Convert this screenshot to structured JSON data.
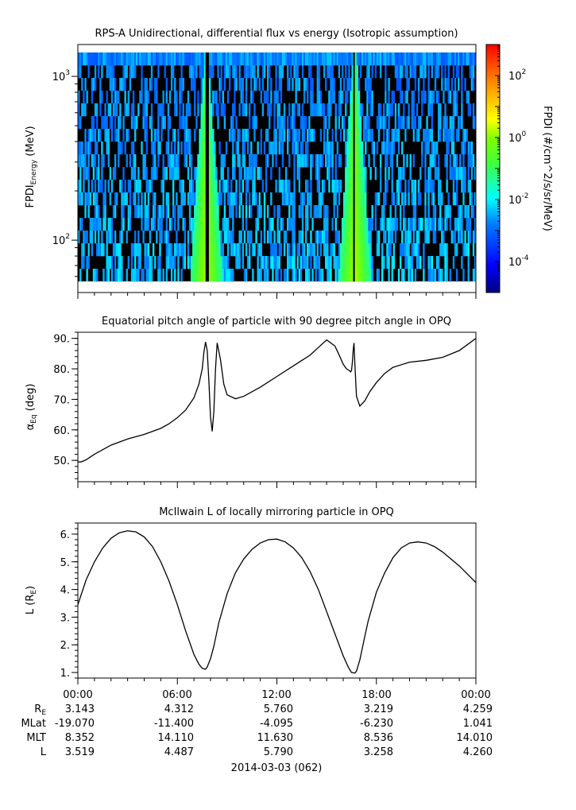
{
  "panels": [
    {
      "title": "RPS-A Unidirectional, differential flux vs energy (Isotropic assumption)",
      "ylabel_main": "FPDI",
      "ylabel_sub": "Energy",
      "ylabel_unit": " (MeV)",
      "ytick_labels": [
        {
          "base": "10",
          "exp": "2"
        },
        {
          "base": "10",
          "exp": "3"
        }
      ],
      "colorbar": {
        "label": "FPDI (#/cm^2/s/sr/MeV)",
        "tick_labels": [
          {
            "base": "10",
            "exp": "2"
          },
          {
            "base": "10",
            "exp": "0"
          },
          {
            "base": "10",
            "exp": "-2"
          },
          {
            "base": "10",
            "exp": "-4"
          }
        ]
      }
    },
    {
      "title": "Equatorial pitch angle of particle with 90 degree pitch angle in OPQ",
      "ylabel_main": "α",
      "ylabel_sub": "Eq",
      "ylabel_unit": " (deg)",
      "ytick_labels": [
        "50.",
        "60.",
        "70.",
        "80.",
        "90."
      ]
    },
    {
      "title": "McIlwain L of locally mirroring particle in OPQ",
      "ylabel_main": "L (R",
      "ylabel_sub": "E",
      "ylabel_unit": ")",
      "ytick_labels": [
        "1.",
        "2.",
        "3.",
        "4.",
        "5.",
        "6."
      ]
    }
  ],
  "xaxis": {
    "tick_labels": [
      "00:00",
      "06:00",
      "12:00",
      "18:00",
      "00:00"
    ],
    "date_label": "2014-03-03 (062)"
  },
  "ephemeris": {
    "rows": [
      {
        "label_main": "R",
        "label_sub": "E",
        "values": [
          "3.143",
          "4.312",
          "5.760",
          "3.219",
          "4.259"
        ]
      },
      {
        "label_main": "MLat",
        "label_sub": "",
        "values": [
          "-19.070",
          "-11.400",
          "-4.095",
          "-6.230",
          "1.041"
        ]
      },
      {
        "label_main": "MLT",
        "label_sub": "",
        "values": [
          "8.352",
          "14.110",
          "11.630",
          "8.536",
          "14.010"
        ]
      },
      {
        "label_main": "L",
        "label_sub": "",
        "values": [
          "3.519",
          "4.487",
          "5.790",
          "3.258",
          "4.260"
        ]
      }
    ]
  },
  "chart_data": [
    {
      "type": "heatmap",
      "title": "RPS-A Unidirectional, differential flux vs energy (Isotropic assumption)",
      "x_range_hours": [
        0,
        24
      ],
      "y_range": [
        56,
        1400
      ],
      "y_scale": "log",
      "color_range": [
        1e-05,
        1000.0
      ],
      "colormap": "rainbow",
      "energy_channels": 18,
      "bands": [
        {
          "t_center": 7.75,
          "half_width_bottom_hours": 1.0,
          "half_width_top_hours": 0.1,
          "gap_hours": [
            7.7,
            7.9
          ]
        },
        {
          "t_center": 16.7,
          "half_width_bottom_hours": 1.0,
          "half_width_top_hours": 0.1,
          "gap_hours": [
            16.6,
            16.75
          ]
        }
      ]
    },
    {
      "type": "line",
      "title": "Equatorial pitch angle of particle with 90 degree pitch angle in OPQ",
      "x_range_hours": [
        0,
        24
      ],
      "ylim": [
        43,
        92
      ],
      "series": [
        {
          "x": [
            0.0,
            0.2,
            0.5,
            1.0,
            1.5,
            2.0,
            3.0,
            4.0,
            5.0,
            5.5,
            6.0,
            6.5,
            7.0,
            7.3,
            7.5,
            7.6,
            7.7,
            7.8,
            7.9,
            8.0,
            8.1,
            8.2,
            8.3,
            8.4,
            8.6,
            8.8,
            9.0,
            9.5,
            10.0,
            11.0,
            12.0,
            13.0,
            14.0,
            14.5,
            15.0,
            15.5,
            15.8,
            16.0,
            16.2,
            16.35,
            16.45,
            16.5,
            16.55,
            16.6,
            16.65,
            16.7,
            16.8,
            17.0,
            17.3,
            17.6,
            18.0,
            18.5,
            19.0,
            20.0,
            21.0,
            22.0,
            23.0,
            24.0
          ],
          "y": [
            49.5,
            49.5,
            50.2,
            52.0,
            53.5,
            55.0,
            57.0,
            58.5,
            60.5,
            62.0,
            64.0,
            66.5,
            70.5,
            75.0,
            80.0,
            85.5,
            88.8,
            86.0,
            76.0,
            64.0,
            59.5,
            66.0,
            80.0,
            88.5,
            83.0,
            75.0,
            71.5,
            70.2,
            71.0,
            74.0,
            77.5,
            81.0,
            84.5,
            87.0,
            89.5,
            87.5,
            84.0,
            81.5,
            80.0,
            79.5,
            79.0,
            79.5,
            82.0,
            86.0,
            88.5,
            82.0,
            71.0,
            67.8,
            69.5,
            72.5,
            75.5,
            78.5,
            80.5,
            82.2,
            82.8,
            83.8,
            86.0,
            90.0
          ]
        }
      ]
    },
    {
      "type": "line",
      "title": "McIlwain L of locally mirroring particle in OPQ",
      "x_range_hours": [
        0,
        24
      ],
      "ylim": [
        0.8,
        6.4
      ],
      "series": [
        {
          "x": [
            0.0,
            0.5,
            1.0,
            1.5,
            2.0,
            2.5,
            3.0,
            3.5,
            4.0,
            4.5,
            5.0,
            5.5,
            6.0,
            6.5,
            7.0,
            7.3,
            7.5,
            7.7,
            7.8,
            8.0,
            8.2,
            8.5,
            9.0,
            9.5,
            10.0,
            10.5,
            11.0,
            11.5,
            12.0,
            12.5,
            13.0,
            13.5,
            14.0,
            14.5,
            15.0,
            15.5,
            16.0,
            16.3,
            16.5,
            16.7,
            16.8,
            17.0,
            17.3,
            17.5,
            18.0,
            18.5,
            19.0,
            19.5,
            20.0,
            20.5,
            21.0,
            21.5,
            22.0,
            22.5,
            23.0,
            23.5,
            24.0
          ],
          "y": [
            3.45,
            4.35,
            5.0,
            5.5,
            5.85,
            6.05,
            6.12,
            6.08,
            5.9,
            5.55,
            5.0,
            4.3,
            3.45,
            2.5,
            1.65,
            1.3,
            1.15,
            1.12,
            1.2,
            1.5,
            1.95,
            2.8,
            3.85,
            4.6,
            5.1,
            5.45,
            5.68,
            5.8,
            5.82,
            5.72,
            5.5,
            5.15,
            4.65,
            4.0,
            3.2,
            2.4,
            1.6,
            1.2,
            1.0,
            0.98,
            1.05,
            1.45,
            2.3,
            2.85,
            3.9,
            4.6,
            5.15,
            5.5,
            5.68,
            5.72,
            5.68,
            5.55,
            5.35,
            5.1,
            4.85,
            4.55,
            4.25
          ]
        }
      ]
    }
  ]
}
